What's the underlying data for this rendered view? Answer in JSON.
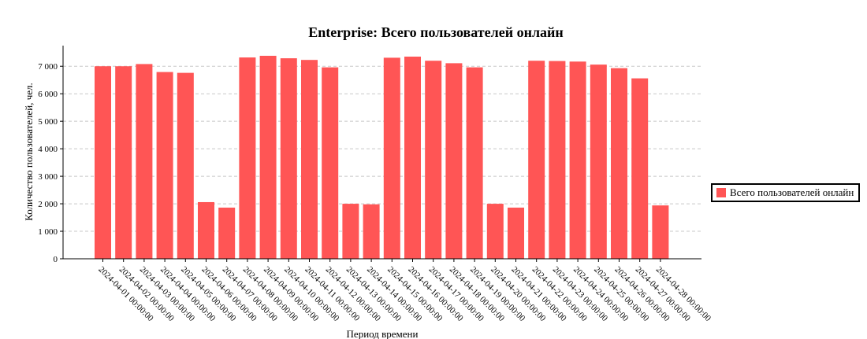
{
  "chart_data": {
    "type": "bar",
    "title": "Enterprise: Всего пользователей онлайн",
    "xlabel": "Период времени",
    "ylabel": "Количество пользователей, чел.",
    "ylim": [
      0,
      7750
    ],
    "yticks": [
      0,
      1000,
      2000,
      3000,
      4000,
      5000,
      6000,
      7000
    ],
    "ytick_labels": [
      "0",
      "1 000",
      "2 000",
      "3 000",
      "4 000",
      "5 000",
      "6 000",
      "7 000"
    ],
    "grid": "y-dashed",
    "legend_position": "right",
    "categories": [
      "2024-04-01 00:00:00",
      "2024-04-02 00:00:00",
      "2024-04-03 00:00:00",
      "2024-04-04 00:00:00",
      "2024-04-05 00:00:00",
      "2024-04-06 00:00:00",
      "2024-04-07 00:00:00",
      "2024-04-08 00:00:00",
      "2024-04-09 00:00:00",
      "2024-04-10 00:00:00",
      "2024-04-11 00:00:00",
      "2024-04-12 00:00:00",
      "2024-04-13 00:00:00",
      "2024-04-14 00:00:00",
      "2024-04-15 00:00:00",
      "2024-04-16 00:00:00",
      "2024-04-17 00:00:00",
      "2024-04-18 00:00:00",
      "2024-04-19 00:00:00",
      "2024-04-20 00:00:00",
      "2024-04-21 00:00:00",
      "2024-04-22 00:00:00",
      "2024-04-23 00:00:00",
      "2024-04-24 00:00:00",
      "2024-04-25 00:00:00",
      "2024-04-26 00:00:00",
      "2024-04-27 00:00:00",
      "2024-04-28 00:00:00"
    ],
    "series": [
      {
        "name": "Всего пользователей онлайн",
        "color": "#ff5555",
        "values": [
          7000,
          7000,
          7080,
          6790,
          6760,
          2060,
          1860,
          7320,
          7380,
          7290,
          7230,
          6960,
          2000,
          1980,
          7310,
          7350,
          7200,
          7110,
          6960,
          2000,
          1860,
          7200,
          7190,
          7170,
          7060,
          6930,
          6560,
          1940
        ]
      }
    ]
  }
}
